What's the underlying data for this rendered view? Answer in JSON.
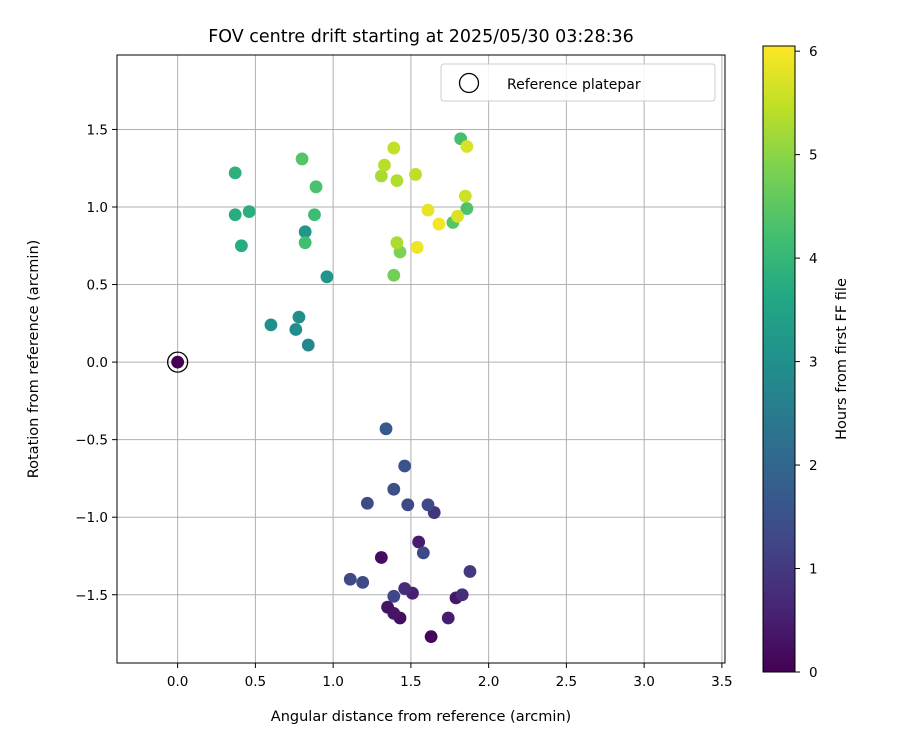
{
  "chart_data": {
    "type": "scatter",
    "title": "FOV centre drift starting at 2025/05/30 03:28:36",
    "xlabel": "Angular distance from reference (arcmin)",
    "ylabel": "Rotation from reference (arcmin)",
    "xlim": [
      -0.39,
      3.52
    ],
    "ylim": [
      -1.94,
      1.98
    ],
    "xticks": [
      0.0,
      0.5,
      1.0,
      1.5,
      2.0,
      2.5,
      3.0,
      3.5
    ],
    "xtick_labels": [
      "0.0",
      "0.5",
      "1.0",
      "1.5",
      "2.0",
      "2.5",
      "3.0",
      "3.5"
    ],
    "yticks": [
      -1.5,
      -1.0,
      -0.5,
      0.0,
      0.5,
      1.0,
      1.5
    ],
    "ytick_labels": [
      "−1.5",
      "−1.0",
      "−0.5",
      "0.0",
      "0.5",
      "1.0",
      "1.5"
    ],
    "grid": true,
    "legend": {
      "position": "top-right",
      "entries": [
        "Reference platepar"
      ]
    },
    "colorbar": {
      "label": "Hours from first FF file",
      "colormap": "viridis",
      "min": 0,
      "max": 6.05,
      "ticks": [
        0,
        1,
        2,
        3,
        4,
        5,
        6
      ],
      "tick_labels": [
        "0",
        "1",
        "2",
        "3",
        "4",
        "5",
        "6"
      ]
    },
    "reference": {
      "x": 0.0,
      "y": 0.0,
      "hours": 0.0
    },
    "points": [
      {
        "x": 1.63,
        "y": -1.77,
        "hours": 0.1
      },
      {
        "x": 1.43,
        "y": -1.65,
        "hours": 0.2
      },
      {
        "x": 1.39,
        "y": -1.62,
        "hours": 0.35
      },
      {
        "x": 1.35,
        "y": -1.58,
        "hours": 0.3
      },
      {
        "x": 1.74,
        "y": -1.65,
        "hours": 0.5
      },
      {
        "x": 1.79,
        "y": -1.52,
        "hours": 0.4
      },
      {
        "x": 1.51,
        "y": -1.49,
        "hours": 0.55
      },
      {
        "x": 1.31,
        "y": -1.26,
        "hours": 0.2
      },
      {
        "x": 1.55,
        "y": -1.16,
        "hours": 0.45
      },
      {
        "x": 1.46,
        "y": -1.46,
        "hours": 0.75
      },
      {
        "x": 1.83,
        "y": -1.5,
        "hours": 0.8
      },
      {
        "x": 1.88,
        "y": -1.35,
        "hours": 1.0
      },
      {
        "x": 1.65,
        "y": -0.97,
        "hours": 0.9
      },
      {
        "x": 1.39,
        "y": -1.51,
        "hours": 1.25
      },
      {
        "x": 1.11,
        "y": -1.4,
        "hours": 1.35
      },
      {
        "x": 1.19,
        "y": -1.42,
        "hours": 1.4
      },
      {
        "x": 1.58,
        "y": -1.23,
        "hours": 1.35
      },
      {
        "x": 1.61,
        "y": -0.92,
        "hours": 1.35
      },
      {
        "x": 1.48,
        "y": -0.92,
        "hours": 1.3
      },
      {
        "x": 1.22,
        "y": -0.91,
        "hours": 1.4
      },
      {
        "x": 1.39,
        "y": -0.82,
        "hours": 1.45
      },
      {
        "x": 1.46,
        "y": -0.67,
        "hours": 1.55
      },
      {
        "x": 1.34,
        "y": -0.43,
        "hours": 1.7
      },
      {
        "x": 0.84,
        "y": 0.11,
        "hours": 2.75
      },
      {
        "x": 0.76,
        "y": 0.21,
        "hours": 2.9
      },
      {
        "x": 0.78,
        "y": 0.29,
        "hours": 2.95
      },
      {
        "x": 0.6,
        "y": 0.24,
        "hours": 3.0
      },
      {
        "x": 0.96,
        "y": 0.55,
        "hours": 3.1
      },
      {
        "x": 0.82,
        "y": 0.84,
        "hours": 3.15
      },
      {
        "x": 0.41,
        "y": 0.75,
        "hours": 3.7
      },
      {
        "x": 0.37,
        "y": 0.95,
        "hours": 3.75
      },
      {
        "x": 0.46,
        "y": 0.97,
        "hours": 3.8
      },
      {
        "x": 0.37,
        "y": 1.22,
        "hours": 3.85
      },
      {
        "x": 0.82,
        "y": 0.77,
        "hours": 4.2
      },
      {
        "x": 0.88,
        "y": 0.95,
        "hours": 4.15
      },
      {
        "x": 0.89,
        "y": 1.13,
        "hours": 4.3
      },
      {
        "x": 0.8,
        "y": 1.31,
        "hours": 4.4
      },
      {
        "x": 1.82,
        "y": 1.44,
        "hours": 4.25
      },
      {
        "x": 1.86,
        "y": 0.99,
        "hours": 4.35
      },
      {
        "x": 1.77,
        "y": 0.9,
        "hours": 4.45
      },
      {
        "x": 1.39,
        "y": 0.56,
        "hours": 4.75
      },
      {
        "x": 1.43,
        "y": 0.71,
        "hours": 4.85
      },
      {
        "x": 1.41,
        "y": 0.77,
        "hours": 5.3
      },
      {
        "x": 1.31,
        "y": 1.2,
        "hours": 5.25
      },
      {
        "x": 1.41,
        "y": 1.17,
        "hours": 5.35
      },
      {
        "x": 1.33,
        "y": 1.27,
        "hours": 5.4
      },
      {
        "x": 1.39,
        "y": 1.38,
        "hours": 5.5
      },
      {
        "x": 1.53,
        "y": 1.21,
        "hours": 5.45
      },
      {
        "x": 1.85,
        "y": 1.07,
        "hours": 5.6
      },
      {
        "x": 1.86,
        "y": 1.39,
        "hours": 5.7
      },
      {
        "x": 1.8,
        "y": 0.94,
        "hours": 5.7
      },
      {
        "x": 1.61,
        "y": 0.98,
        "hours": 5.85
      },
      {
        "x": 1.54,
        "y": 0.74,
        "hours": 5.9
      },
      {
        "x": 1.68,
        "y": 0.89,
        "hours": 5.95
      }
    ]
  }
}
